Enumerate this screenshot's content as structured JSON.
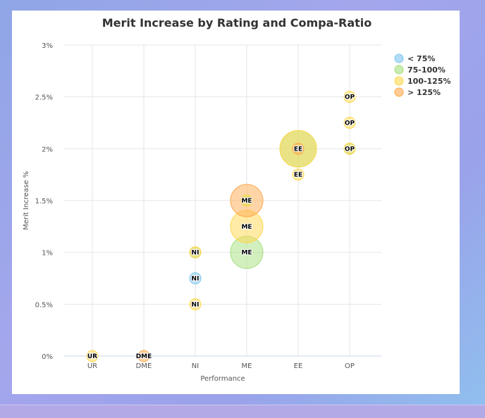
{
  "chart_data": {
    "type": "bubble",
    "title": "Merit Increase by Rating and Compa-Ratio",
    "xlabel": "Performance",
    "ylabel": "Merit Increase %",
    "categories": [
      "UR",
      "DME",
      "NI",
      "ME",
      "EE",
      "OP"
    ],
    "yticks": [
      "0%",
      "0.5%",
      "1%",
      "1.5%",
      "2%",
      "2.5%",
      "3%"
    ],
    "ylim": [
      0,
      3
    ],
    "grid": true,
    "legend_position": "right",
    "series": [
      {
        "name": "< 75%",
        "color": "#7cc6ee",
        "points": [
          {
            "x": "NI",
            "y": 0.75,
            "z": 1,
            "label": "NI"
          }
        ]
      },
      {
        "name": "75-100%",
        "color": "#a6e07e",
        "points": [
          {
            "x": "NI",
            "y": 1.0,
            "z": 1,
            "label": "NI"
          },
          {
            "x": "ME",
            "y": 1.0,
            "z": 6,
            "label": "ME"
          },
          {
            "x": "ME",
            "y": 1.5,
            "z": 1,
            "label": "ME"
          },
          {
            "x": "EE",
            "y": 2.0,
            "z": 7,
            "label": "EE"
          },
          {
            "x": "OP",
            "y": 2.0,
            "z": 1,
            "label": "OP"
          }
        ]
      },
      {
        "name": "100-125%",
        "color": "#ffd84d",
        "points": [
          {
            "x": "UR",
            "y": 0,
            "z": 1,
            "label": "UR"
          },
          {
            "x": "NI",
            "y": 0.5,
            "z": 1,
            "label": "NI"
          },
          {
            "x": "NI",
            "y": 1.0,
            "z": 1,
            "label": "NI"
          },
          {
            "x": "ME",
            "y": 1.25,
            "z": 6,
            "label": "ME"
          },
          {
            "x": "ME",
            "y": 1.5,
            "z": 1,
            "label": "ME"
          },
          {
            "x": "EE",
            "y": 1.75,
            "z": 1,
            "label": "EE"
          },
          {
            "x": "EE",
            "y": 2.0,
            "z": 7,
            "label": "EE"
          },
          {
            "x": "OP",
            "y": 2.0,
            "z": 1,
            "label": "OP"
          },
          {
            "x": "OP",
            "y": 2.25,
            "z": 1,
            "label": "OP"
          },
          {
            "x": "OP",
            "y": 2.5,
            "z": 1,
            "label": "OP"
          }
        ]
      },
      {
        "name": "> 125%",
        "color": "#ffa94d",
        "points": [
          {
            "x": "DME",
            "y": 0,
            "z": 1,
            "label": "DME"
          },
          {
            "x": "ME",
            "y": 1.5,
            "z": 6,
            "label": "ME"
          },
          {
            "x": "EE",
            "y": 2.0,
            "z": 1,
            "label": "EE"
          }
        ]
      }
    ]
  }
}
